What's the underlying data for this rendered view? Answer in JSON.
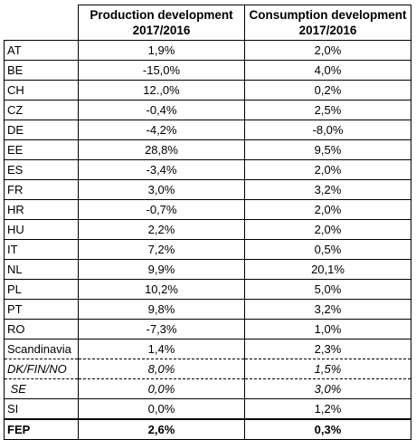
{
  "table": {
    "headers": {
      "production": [
        "Production development",
        "2017/2016"
      ],
      "consumption": [
        "Consumption development",
        "2017/2016"
      ]
    },
    "rows": [
      {
        "country": "AT",
        "production": "1,9%",
        "consumption": "2,0%"
      },
      {
        "country": "BE",
        "production": "-15,0%",
        "consumption": "4,0%"
      },
      {
        "country": "CH",
        "production": "12.,0%",
        "consumption": "0,2%"
      },
      {
        "country": "CZ",
        "production": "-0,4%",
        "consumption": "2,5%"
      },
      {
        "country": "DE",
        "production": "-4,2%",
        "consumption": "-8,0%"
      },
      {
        "country": "EE",
        "production": "28,8%",
        "consumption": "9,5%"
      },
      {
        "country": "ES",
        "production": "-3,4%",
        "consumption": "2,0%"
      },
      {
        "country": "FR",
        "production": "3,0%",
        "consumption": "3,2%"
      },
      {
        "country": "HR",
        "production": "-0,7%",
        "consumption": "2,0%"
      },
      {
        "country": "HU",
        "production": "2,2%",
        "consumption": "2,0%"
      },
      {
        "country": "IT",
        "production": "7,2%",
        "consumption": "0,5%"
      },
      {
        "country": "NL",
        "production": "9,9%",
        "consumption": "20,1%"
      },
      {
        "country": "PL",
        "production": "10,2%",
        "consumption": "5,0%"
      },
      {
        "country": "PT",
        "production": "9,8%",
        "consumption": "3,2%"
      },
      {
        "country": "RO",
        "production": "-7,3%",
        "consumption": "1,0%"
      },
      {
        "country": "Scandinavia",
        "production": "1,4%",
        "consumption": "2,3%"
      },
      {
        "country": "DK/FIN/NO",
        "production": "8,0%",
        "consumption": "1,5%"
      },
      {
        "country": " SE",
        "production": "0,0%",
        "consumption": "3,0%"
      },
      {
        "country": "SI",
        "production": "0,0%",
        "consumption": "1,2%"
      },
      {
        "country": "FEP",
        "production": "2,6%",
        "consumption": "0,3%"
      }
    ]
  }
}
